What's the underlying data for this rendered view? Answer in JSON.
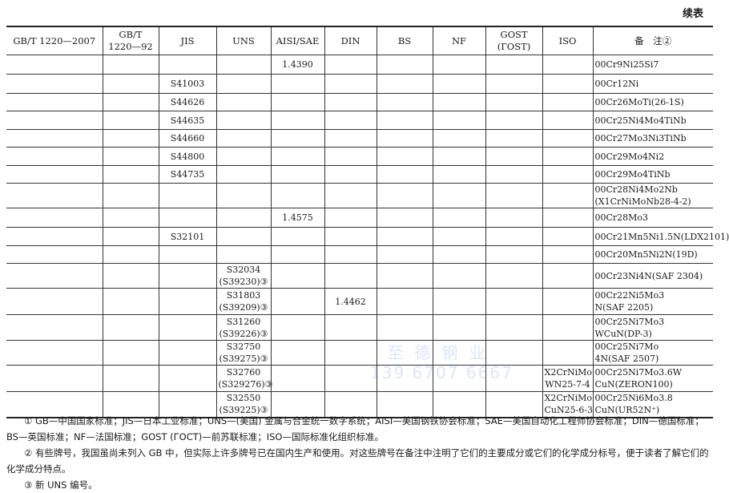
{
  "continued_label": "续表",
  "headers": [
    "GB/T 1220—2007",
    "GB/T\n1220—92",
    "JIS",
    "UNS",
    "AISI/SAE",
    "DIN",
    "BS",
    "NF",
    "GOST\n(ГOST)",
    "ISO",
    "备　注②"
  ],
  "rows": [
    {
      "jis": "",
      "uns": "",
      "uns2": "",
      "aisi": "1.4390",
      "din": "",
      "iso": "",
      "iso2": "",
      "note": "00Cr9Ni25Si7",
      "note2": ""
    },
    {
      "jis": "S41003",
      "uns": "",
      "uns2": "",
      "aisi": "",
      "din": "",
      "iso": "",
      "iso2": "",
      "note": "00Cr12Ni",
      "note2": ""
    },
    {
      "jis": "S44626",
      "uns": "",
      "uns2": "",
      "aisi": "",
      "din": "",
      "iso": "",
      "iso2": "",
      "note": "00Cr26MoTi(26-1S)",
      "note2": ""
    },
    {
      "jis": "S44635",
      "uns": "",
      "uns2": "",
      "aisi": "",
      "din": "",
      "iso": "",
      "iso2": "",
      "note": "00Cr25Ni4Mo4TiNb",
      "note2": ""
    },
    {
      "jis": "S44660",
      "uns": "",
      "uns2": "",
      "aisi": "",
      "din": "",
      "iso": "",
      "iso2": "",
      "note": "00Cr27Mo3Ni3TiNb",
      "note2": ""
    },
    {
      "jis": "S44800",
      "uns": "",
      "uns2": "",
      "aisi": "",
      "din": "",
      "iso": "",
      "iso2": "",
      "note": "00Cr29Mo4Ni2",
      "note2": ""
    },
    {
      "jis": "S44735",
      "uns": "",
      "uns2": "",
      "aisi": "",
      "din": "",
      "iso": "",
      "iso2": "",
      "note": "00Cr29Mo4TiNb",
      "note2": ""
    },
    {
      "jis": "",
      "uns": "",
      "uns2": "",
      "aisi": "",
      "din": "",
      "iso": "",
      "iso2": "",
      "note": "00Cr28Ni4Mo2Nb",
      "note2": "(X1CrNiMoNb28-4-2)"
    },
    {
      "jis": "",
      "uns": "",
      "uns2": "",
      "aisi": "1.4575",
      "din": "",
      "iso": "",
      "iso2": "",
      "note": "00Cr28Mo3",
      "note2": ""
    },
    {
      "jis": "S32101",
      "uns": "",
      "uns2": "",
      "aisi": "",
      "din": "",
      "iso": "",
      "iso2": "",
      "note": "00Cr21Mn5Ni1.5N(LDX2101)",
      "note2": ""
    },
    {
      "jis": "",
      "uns": "",
      "uns2": "",
      "aisi": "",
      "din": "",
      "iso": "",
      "iso2": "",
      "note": "00Cr20Mn5Ni2N(19D)",
      "note2": ""
    },
    {
      "jis": "",
      "uns": "S32034",
      "uns2": "(S39230)③",
      "aisi": "",
      "din": "",
      "iso": "",
      "iso2": "",
      "note": "00Cr23Ni4N(SAF 2304)",
      "note2": ""
    },
    {
      "jis": "",
      "uns": "S31803",
      "uns2": "(S39209)③",
      "aisi": "",
      "din": "1.4462",
      "iso": "",
      "iso2": "",
      "note": "00Cr22Ni5Mo3",
      "note2": "N(SAF 2205)"
    },
    {
      "jis": "",
      "uns": "S31260",
      "uns2": "(S39226)③",
      "aisi": "",
      "din": "",
      "iso": "",
      "iso2": "",
      "note": "00Cr25Ni7Mo3",
      "note2": "WCuN(DP-3)"
    },
    {
      "jis": "",
      "uns": "S32750",
      "uns2": "(S39275)③",
      "aisi": "",
      "din": "",
      "iso": "",
      "iso2": "",
      "note": "00Cr25Ni7Mo",
      "note2": "4N(SAF 2507)"
    },
    {
      "jis": "",
      "uns": "S32760",
      "uns2": "(S329276)③",
      "aisi": "",
      "din": "",
      "iso": "X2CrNiMo",
      "iso2": "WN25-7-4",
      "note": "00Cr25Ni7Mo3.6W",
      "note2": "CuN(ZERON100)"
    },
    {
      "jis": "",
      "uns": "S32550",
      "uns2": "(S39225)③",
      "aisi": "",
      "din": "",
      "iso": "X2CrNiMo",
      "iso2": "CuN25-6-3",
      "note": "00Cr25Ni6Mo3.8",
      "note2": "CuN(UR52N⁺)"
    }
  ],
  "footnotes": [
    "① GB—中国国家标准；JIS—日本工业标准；UNS—(美国) 金属与合金统一数字系统；AISI—美国钢铁协会标准；SAE—美国自动化工程师协会标准；DIN—德国标准；BS—英国标准；NF—法国标准；GOST (ГОСТ)—前苏联标准；ISO—国际标准化组织标准。",
    "② 有些牌号，我国虽尚未列入 GB 中，但实际上许多牌号已在国内生产和使用。对这些牌号在备注中注明了它们的主要成分或它们的化学成分标号，便于读者了解它们的化学成分特点。",
    "③ 新 UNS 编号。"
  ],
  "watermark": {
    "name": "至德钢业",
    "phone": "139 6707 6667"
  }
}
